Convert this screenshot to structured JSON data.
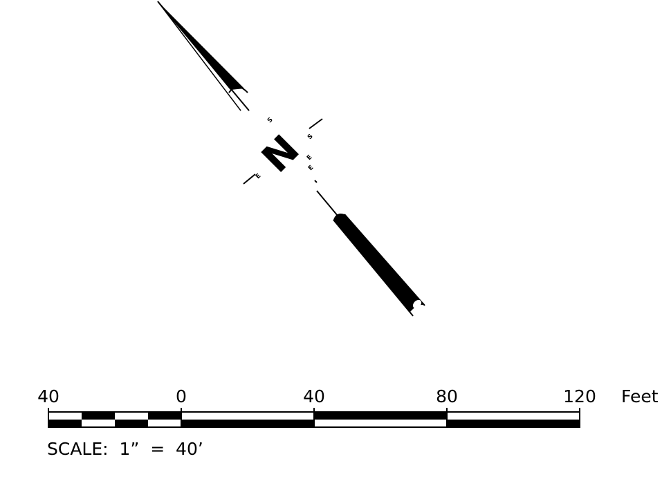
{
  "north_arrow": {
    "letter": "N",
    "cardinal_labels": [
      "S",
      "S",
      "E",
      "E",
      "E"
    ]
  },
  "scale_bar": {
    "tick_labels": [
      "40",
      "0",
      "40",
      "80",
      "120"
    ],
    "unit": "Feet",
    "caption": "SCALE:  1”  =  40’",
    "colors": {
      "ink": "#000000",
      "paper": "#ffffff"
    }
  }
}
